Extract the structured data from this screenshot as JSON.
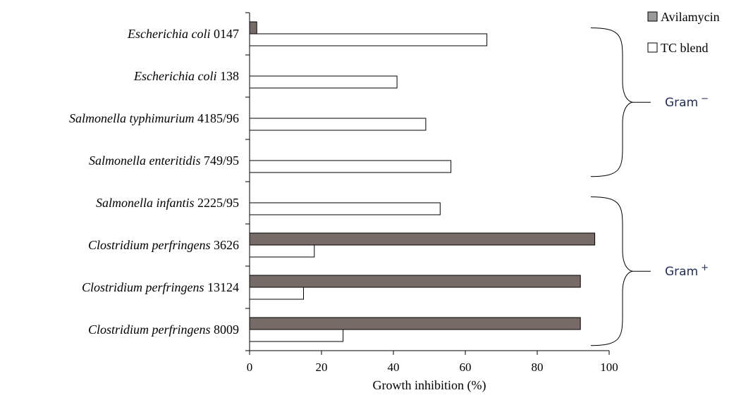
{
  "chart_data": {
    "type": "bar",
    "orientation": "horizontal",
    "categories": [
      {
        "italic": "Escherichia coli",
        "strain": "0147"
      },
      {
        "italic": "Escherichia coli",
        "strain": "138"
      },
      {
        "italic": "Salmonella typhimurium",
        "strain": "4185/96"
      },
      {
        "italic": "Salmonella enteritidis",
        "strain": "749/95"
      },
      {
        "italic": "Salmonella infantis",
        "strain": "2225/95"
      },
      {
        "italic": "Clostridium perfringens",
        "strain": "3626"
      },
      {
        "italic": "Clostridium perfringens",
        "strain": "13124"
      },
      {
        "italic": "Clostridium perfringens",
        "strain": "8009"
      }
    ],
    "series": [
      {
        "name": "Avilamycin",
        "color": "#766b66",
        "values": [
          2,
          0,
          0,
          0,
          0,
          96,
          92,
          92
        ]
      },
      {
        "name": "TC blend",
        "color": "#ffffff",
        "values": [
          66,
          41,
          49,
          56,
          53,
          18,
          15,
          26
        ]
      }
    ],
    "xlabel": "Growth inhibition (%)",
    "xlim": [
      0,
      100
    ],
    "xticks": [
      0,
      20,
      40,
      60,
      80,
      100
    ],
    "legend_position": "top-right",
    "groups": [
      {
        "label": "Gram",
        "superscript": "−",
        "from": 0,
        "to": 3
      },
      {
        "label": "Gram",
        "superscript": "+",
        "from": 4,
        "to": 7
      }
    ]
  }
}
